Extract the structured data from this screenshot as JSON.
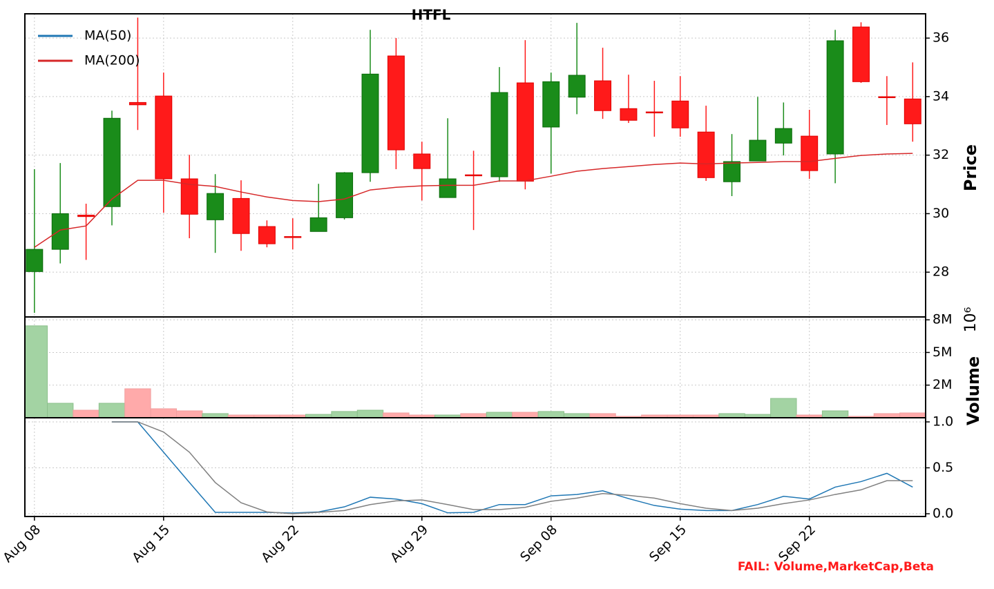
{
  "chart_data": [
    {
      "type": "candlestick",
      "title": "HTFL",
      "ylabel": "Price",
      "categories": [
        "Aug 08",
        null,
        null,
        null,
        null,
        "Aug 15",
        null,
        null,
        null,
        null,
        "Aug 22",
        null,
        null,
        null,
        null,
        "Aug 29",
        null,
        null,
        null,
        null,
        "Sep 08",
        null,
        null,
        null,
        null,
        "Sep 15",
        null,
        null,
        null,
        null,
        "Sep 22",
        null,
        null,
        null,
        null
      ],
      "open": [
        28.02,
        28.78,
        29.95,
        30.24,
        33.8,
        34.02,
        31.19,
        29.79,
        30.52,
        29.56,
        29.2,
        29.39,
        29.86,
        31.4,
        35.39,
        32.04,
        30.55,
        31.31,
        31.26,
        34.47,
        32.96,
        33.98,
        34.54,
        33.59,
        33.46,
        33.85,
        32.79,
        31.09,
        31.8,
        32.41,
        32.65,
        32.04,
        36.38,
        33.98,
        33.92
      ],
      "high": [
        31.52,
        31.73,
        30.34,
        33.52,
        36.7,
        34.82,
        32.01,
        31.35,
        31.14,
        29.77,
        29.84,
        31.02,
        31.42,
        36.28,
        36.0,
        32.46,
        33.26,
        32.15,
        35.01,
        35.93,
        34.82,
        36.52,
        35.67,
        34.75,
        34.54,
        34.7,
        33.69,
        32.72,
        33.99,
        33.8,
        33.55,
        36.28,
        36.54,
        34.7,
        35.17
      ],
      "low": [
        26.61,
        28.3,
        28.42,
        29.6,
        32.86,
        30.03,
        29.16,
        28.66,
        28.73,
        28.85,
        28.78,
        29.39,
        29.8,
        31.09,
        31.52,
        30.45,
        30.55,
        29.44,
        31.09,
        30.83,
        31.37,
        33.4,
        33.24,
        33.1,
        32.63,
        32.63,
        31.12,
        30.6,
        31.8,
        31.99,
        31.19,
        31.04,
        34.47,
        33.03,
        32.46
      ],
      "close": [
        28.78,
        30.0,
        29.9,
        33.26,
        33.72,
        31.19,
        29.98,
        30.69,
        29.32,
        28.97,
        29.18,
        29.86,
        31.4,
        34.77,
        32.18,
        31.54,
        31.19,
        31.29,
        34.14,
        31.11,
        34.51,
        34.73,
        33.52,
        33.19,
        33.43,
        32.93,
        31.23,
        31.78,
        32.51,
        32.91,
        31.47,
        35.91,
        34.51,
        33.95,
        33.07
      ],
      "up_color": "#1a8c1a",
      "down_color": "#ff1a1a",
      "series": [
        {
          "name": "MA(50)",
          "color": "#1f77b4",
          "values": [
            null,
            null,
            null,
            null,
            null,
            null,
            null,
            null,
            null,
            null,
            null,
            null,
            null,
            null,
            null,
            null,
            null,
            null,
            null,
            null,
            null,
            null,
            null,
            null,
            null,
            null,
            null,
            null,
            null,
            null,
            null,
            null,
            null,
            null,
            null
          ]
        },
        {
          "name": "MA(200)",
          "color": "#d62728",
          "values": [
            28.85,
            29.44,
            29.58,
            30.5,
            31.14,
            31.14,
            31.0,
            30.93,
            30.74,
            30.57,
            30.45,
            30.41,
            30.5,
            30.81,
            30.9,
            30.95,
            30.97,
            30.97,
            31.12,
            31.12,
            31.28,
            31.45,
            31.54,
            31.61,
            31.68,
            31.73,
            31.7,
            31.73,
            31.75,
            31.78,
            31.78,
            31.89,
            31.99,
            32.04,
            32.06
          ]
        }
      ],
      "xlim": [
        -0.37,
        34.5
      ],
      "ylim": [
        26.47,
        36.83
      ],
      "yticks": [
        28,
        30,
        32,
        34,
        36
      ],
      "grid": true,
      "legend": "upper left"
    },
    {
      "type": "bar",
      "ylabel": "Volume",
      "offset_label": "10⁶",
      "values": [
        7.04,
        1.11,
        0.58,
        1.11,
        2.22,
        0.69,
        0.53,
        0.32,
        0.21,
        0.21,
        0.21,
        0.26,
        0.48,
        0.58,
        0.37,
        0.21,
        0.21,
        0.32,
        0.42,
        0.42,
        0.48,
        0.32,
        0.32,
        0.11,
        0.21,
        0.21,
        0.21,
        0.32,
        0.26,
        1.48,
        0.21,
        0.53,
        0.11,
        0.32,
        0.37
      ],
      "up_color": "#a3d3a3",
      "down_color": "#ffaaaa",
      "ylim": [
        0,
        7.72
      ],
      "yticks": [
        {
          "value": 2.5,
          "label": "2M"
        },
        {
          "value": 5,
          "label": "5M"
        },
        {
          "value": 7.5,
          "label": "8M"
        }
      ],
      "grid": true
    },
    {
      "type": "line",
      "series": [
        {
          "color": "#1f77b4",
          "values": [
            null,
            null,
            null,
            1.0,
            1.0,
            0.67,
            0.34,
            0.015,
            0.015,
            0.015,
            0.008,
            0.02,
            0.075,
            0.18,
            0.16,
            0.11,
            0.01,
            0.015,
            0.1,
            0.1,
            0.195,
            0.21,
            0.25,
            0.165,
            0.09,
            0.05,
            0.035,
            0.035,
            0.1,
            0.19,
            0.16,
            0.29,
            0.35,
            0.44,
            0.29
          ]
        },
        {
          "color": "#808080",
          "values": [
            null,
            null,
            null,
            1.0,
            1.0,
            0.89,
            0.67,
            0.34,
            0.12,
            0.02,
            0.0,
            0.015,
            0.035,
            0.1,
            0.14,
            0.15,
            0.1,
            0.045,
            0.045,
            0.07,
            0.135,
            0.17,
            0.22,
            0.2,
            0.17,
            0.11,
            0.06,
            0.035,
            0.06,
            0.11,
            0.15,
            0.21,
            0.26,
            0.36,
            0.36
          ]
        }
      ],
      "ylim": [
        -0.03,
        1.045
      ],
      "yticks": [
        {
          "value": 0,
          "label": "0.0"
        },
        {
          "value": 0.5,
          "label": "0.5"
        },
        {
          "value": 1,
          "label": "1.0"
        }
      ],
      "grid": true
    }
  ],
  "footnote": "FAIL: Volume,MarketCap,Beta"
}
